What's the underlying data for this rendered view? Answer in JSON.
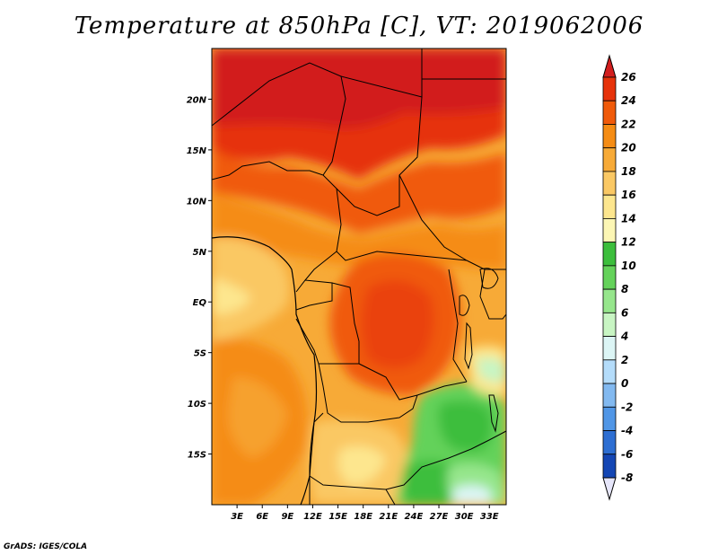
{
  "title": "Temperature at 850hPa [C], VT: 2019062006",
  "credit": "GrADS: IGES/COLA",
  "map": {
    "lon_range": [
      0,
      35
    ],
    "lat_range": [
      -20,
      25
    ],
    "lon_ticks": [
      "3E",
      "6E",
      "9E",
      "12E",
      "15E",
      "18E",
      "21E",
      "24E",
      "27E",
      "30E",
      "33E"
    ],
    "lon_tick_values": [
      3,
      6,
      9,
      12,
      15,
      18,
      21,
      24,
      27,
      30,
      33
    ],
    "lat_ticks": [
      "20N",
      "15N",
      "10N",
      "5N",
      "EQ",
      "5S",
      "10S",
      "15S"
    ],
    "lat_tick_values": [
      20,
      15,
      10,
      5,
      0,
      -5,
      -10,
      -15
    ]
  },
  "colorbar": {
    "labels": [
      "26",
      "24",
      "22",
      "20",
      "18",
      "16",
      "14",
      "12",
      "10",
      "8",
      "6",
      "4",
      "2",
      "0",
      "-2",
      "-4",
      "-6",
      "-8"
    ],
    "colors": [
      "#d21e1e",
      "#e6320a",
      "#f05a0a",
      "#f58c14",
      "#f7aa37",
      "#fac864",
      "#fde68e",
      "#fcf6b4",
      "#3cbe3c",
      "#64d25a",
      "#96e68c",
      "#c8f5c3",
      "#dcf5f5",
      "#b4dcfa",
      "#82b9f0",
      "#5096e6",
      "#2d6ed2",
      "#1446b4",
      "#0a1e82",
      "#e6e6fa"
    ]
  }
}
